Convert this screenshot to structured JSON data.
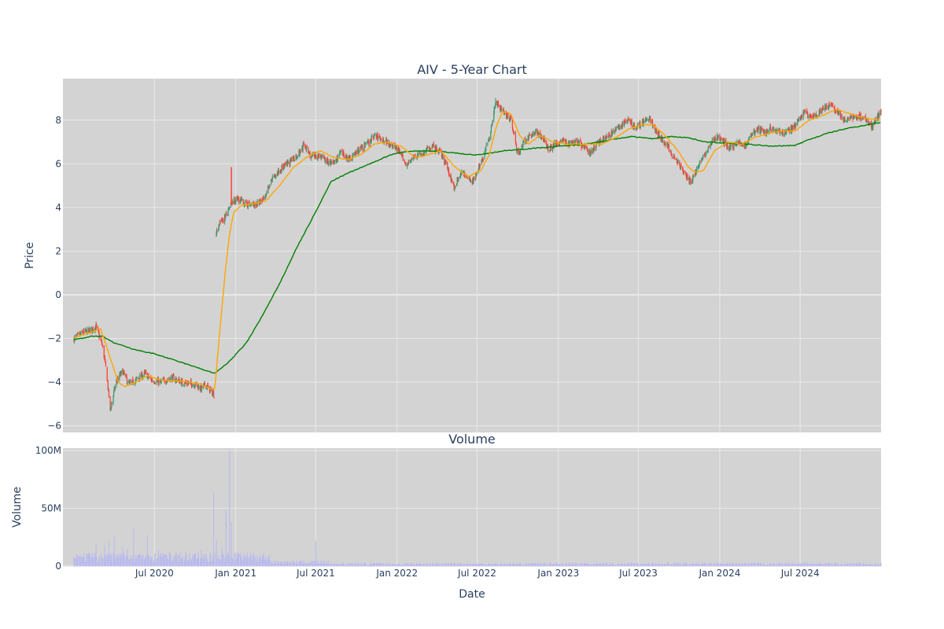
{
  "chart_data": [
    {
      "type": "candlestick",
      "title": "AIV - 5-Year Chart",
      "xlabel": "",
      "ylabel": "Price",
      "ylim": [
        -6.3,
        9.9
      ],
      "xlim": [
        "2020-01-01",
        "2024-12-31"
      ],
      "grid": true,
      "legend": "none",
      "colors": {
        "background": "#d3d3d3",
        "grid": "#e8e8e8",
        "increasing": "#3d9970",
        "decreasing": "#ff4136",
        "ma_short": "#ffa500",
        "ma_long": "#008000"
      },
      "yticks": [
        "−6",
        "−4",
        "−2",
        "0",
        "2",
        "4",
        "6",
        "8"
      ],
      "ytick_values": [
        -6,
        -4,
        -2,
        0,
        2,
        4,
        6,
        8
      ],
      "price_anchors": [
        [
          "2020-01-01",
          -2.0
        ],
        [
          "2020-01-20",
          -1.75
        ],
        [
          "2020-02-10",
          -1.6
        ],
        [
          "2020-02-20",
          -1.45
        ],
        [
          "2020-03-05",
          -2.3
        ],
        [
          "2020-03-15",
          -3.6
        ],
        [
          "2020-03-23",
          -5.3
        ],
        [
          "2020-04-05",
          -4.0
        ],
        [
          "2020-04-20",
          -3.5
        ],
        [
          "2020-05-05",
          -4.1
        ],
        [
          "2020-05-20",
          -3.9
        ],
        [
          "2020-06-10",
          -3.6
        ],
        [
          "2020-06-25",
          -3.9
        ],
        [
          "2020-07-15",
          -4.0
        ],
        [
          "2020-08-10",
          -3.8
        ],
        [
          "2020-09-01",
          -4.0
        ],
        [
          "2020-10-01",
          -4.1
        ],
        [
          "2020-10-15",
          -4.3
        ],
        [
          "2020-10-25",
          -4.1
        ],
        [
          "2020-11-05",
          -4.4
        ],
        [
          "2020-11-15",
          -4.6
        ],
        [
          "2020-11-18",
          2.8
        ],
        [
          "2020-11-25",
          3.3
        ],
        [
          "2020-12-05",
          3.5
        ],
        [
          "2020-12-15",
          3.8
        ],
        [
          "2020-12-22",
          4.2
        ],
        [
          "2021-01-05",
          4.4
        ],
        [
          "2021-01-20",
          4.2
        ],
        [
          "2021-02-05",
          4.1
        ],
        [
          "2021-02-25",
          4.2
        ],
        [
          "2021-03-10",
          4.6
        ],
        [
          "2021-03-25",
          5.3
        ],
        [
          "2021-04-15",
          5.8
        ],
        [
          "2021-05-05",
          6.1
        ],
        [
          "2021-05-25",
          6.5
        ],
        [
          "2021-06-05",
          6.9
        ],
        [
          "2021-06-20",
          6.3
        ],
        [
          "2021-07-10",
          6.4
        ],
        [
          "2021-07-25",
          6.1
        ],
        [
          "2021-08-10",
          6.0
        ],
        [
          "2021-08-25",
          6.5
        ],
        [
          "2021-09-15",
          6.2
        ],
        [
          "2021-10-05",
          6.6
        ],
        [
          "2021-10-25",
          6.9
        ],
        [
          "2021-11-10",
          7.3
        ],
        [
          "2021-12-01",
          7.1
        ],
        [
          "2021-12-20",
          6.9
        ],
        [
          "2022-01-05",
          6.6
        ],
        [
          "2022-01-20",
          6.0
        ],
        [
          "2022-02-10",
          6.3
        ],
        [
          "2022-03-01",
          6.5
        ],
        [
          "2022-03-20",
          6.8
        ],
        [
          "2022-04-10",
          6.5
        ],
        [
          "2022-04-25",
          5.8
        ],
        [
          "2022-05-10",
          4.9
        ],
        [
          "2022-05-25",
          5.6
        ],
        [
          "2022-06-10",
          5.4
        ],
        [
          "2022-06-20",
          5.2
        ],
        [
          "2022-07-01",
          5.6
        ],
        [
          "2022-07-15",
          6.3
        ],
        [
          "2022-07-28",
          7.2
        ],
        [
          "2022-08-05",
          8.0
        ],
        [
          "2022-08-12",
          8.9
        ],
        [
          "2022-08-22",
          8.6
        ],
        [
          "2022-09-01",
          8.3
        ],
        [
          "2022-09-15",
          8.1
        ],
        [
          "2022-09-25",
          7.1
        ],
        [
          "2022-10-01",
          6.4
        ],
        [
          "2022-10-10",
          6.8
        ],
        [
          "2022-10-25",
          7.2
        ],
        [
          "2022-11-10",
          7.5
        ],
        [
          "2022-11-25",
          7.2
        ],
        [
          "2022-12-10",
          6.7
        ],
        [
          "2022-12-25",
          6.9
        ],
        [
          "2023-01-10",
          7.1
        ],
        [
          "2023-01-25",
          6.9
        ],
        [
          "2023-02-10",
          7.1
        ],
        [
          "2023-03-01",
          6.7
        ],
        [
          "2023-03-15",
          6.5
        ],
        [
          "2023-04-01",
          7.0
        ],
        [
          "2023-04-20",
          7.2
        ],
        [
          "2023-05-10",
          7.5
        ],
        [
          "2023-05-25",
          7.8
        ],
        [
          "2023-06-10",
          8.0
        ],
        [
          "2023-06-25",
          7.6
        ],
        [
          "2023-07-10",
          7.9
        ],
        [
          "2023-07-25",
          8.1
        ],
        [
          "2023-08-05",
          7.7
        ],
        [
          "2023-08-20",
          7.2
        ],
        [
          "2023-09-05",
          6.8
        ],
        [
          "2023-09-20",
          6.3
        ],
        [
          "2023-10-05",
          5.8
        ],
        [
          "2023-10-20",
          5.3
        ],
        [
          "2023-10-28",
          5.1
        ],
        [
          "2023-11-10",
          5.8
        ],
        [
          "2023-11-25",
          6.3
        ],
        [
          "2023-12-10",
          6.9
        ],
        [
          "2023-12-25",
          7.2
        ],
        [
          "2024-01-10",
          7.0
        ],
        [
          "2024-01-25",
          6.7
        ],
        [
          "2024-02-10",
          7.0
        ],
        [
          "2024-02-25",
          6.8
        ],
        [
          "2024-03-10",
          7.2
        ],
        [
          "2024-03-25",
          7.6
        ],
        [
          "2024-04-10",
          7.4
        ],
        [
          "2024-04-25",
          7.6
        ],
        [
          "2024-05-10",
          7.5
        ],
        [
          "2024-05-25",
          7.4
        ],
        [
          "2024-06-10",
          7.6
        ],
        [
          "2024-06-25",
          7.9
        ],
        [
          "2024-07-10",
          8.4
        ],
        [
          "2024-07-25",
          8.1
        ],
        [
          "2024-08-10",
          8.3
        ],
        [
          "2024-08-25",
          8.6
        ],
        [
          "2024-09-10",
          8.7
        ],
        [
          "2024-09-25",
          8.3
        ],
        [
          "2024-10-10",
          8.0
        ],
        [
          "2024-10-25",
          8.1
        ],
        [
          "2024-11-10",
          8.2
        ],
        [
          "2024-11-25",
          8.1
        ],
        [
          "2024-12-10",
          7.7
        ],
        [
          "2024-12-31",
          8.4
        ]
      ],
      "ma_short_anchors": [
        [
          "2020-01-01",
          -1.95
        ],
        [
          "2020-02-10",
          -1.7
        ],
        [
          "2020-03-01",
          -1.55
        ],
        [
          "2020-03-20",
          -2.7
        ],
        [
          "2020-04-10",
          -4.0
        ],
        [
          "2020-04-25",
          -4.2
        ],
        [
          "2020-05-20",
          -4.0
        ],
        [
          "2020-06-15",
          -3.7
        ],
        [
          "2020-07-15",
          -3.9
        ],
        [
          "2020-09-01",
          -3.95
        ],
        [
          "2020-10-15",
          -4.1
        ],
        [
          "2020-11-05",
          -4.3
        ],
        [
          "2020-11-15",
          -4.3
        ],
        [
          "2020-11-20",
          -3.0
        ],
        [
          "2020-11-28",
          -1.2
        ],
        [
          "2020-12-08",
          1.0
        ],
        [
          "2020-12-18",
          2.8
        ],
        [
          "2020-12-28",
          3.8
        ],
        [
          "2021-01-15",
          4.1
        ],
        [
          "2021-02-15",
          4.2
        ],
        [
          "2021-03-10",
          4.3
        ],
        [
          "2021-04-10",
          5.0
        ],
        [
          "2021-05-10",
          5.8
        ],
        [
          "2021-06-10",
          6.3
        ],
        [
          "2021-07-10",
          6.6
        ],
        [
          "2021-08-10",
          6.3
        ],
        [
          "2021-09-10",
          6.2
        ],
        [
          "2021-10-10",
          6.4
        ],
        [
          "2021-11-10",
          6.9
        ],
        [
          "2021-12-10",
          7.0
        ],
        [
          "2022-01-10",
          6.8
        ],
        [
          "2022-02-10",
          6.3
        ],
        [
          "2022-03-10",
          6.4
        ],
        [
          "2022-04-10",
          6.6
        ],
        [
          "2022-05-10",
          5.9
        ],
        [
          "2022-06-10",
          5.4
        ],
        [
          "2022-07-10",
          5.7
        ],
        [
          "2022-07-28",
          6.4
        ],
        [
          "2022-08-15",
          7.8
        ],
        [
          "2022-08-28",
          8.4
        ],
        [
          "2022-09-15",
          8.3
        ],
        [
          "2022-10-05",
          7.3
        ],
        [
          "2022-10-25",
          6.9
        ],
        [
          "2022-11-20",
          7.3
        ],
        [
          "2022-12-20",
          7.0
        ],
        [
          "2023-01-20",
          6.9
        ],
        [
          "2023-03-01",
          6.9
        ],
        [
          "2023-04-10",
          6.9
        ],
        [
          "2023-05-10",
          7.2
        ],
        [
          "2023-06-10",
          7.6
        ],
        [
          "2023-07-10",
          7.8
        ],
        [
          "2023-08-01",
          7.8
        ],
        [
          "2023-08-25",
          7.4
        ],
        [
          "2023-09-25",
          6.7
        ],
        [
          "2023-10-20",
          5.9
        ],
        [
          "2023-11-05",
          5.6
        ],
        [
          "2023-11-25",
          5.7
        ],
        [
          "2023-12-20",
          6.6
        ],
        [
          "2024-01-20",
          7.0
        ],
        [
          "2024-02-20",
          6.9
        ],
        [
          "2024-03-20",
          7.2
        ],
        [
          "2024-04-20",
          7.4
        ],
        [
          "2024-05-20",
          7.5
        ],
        [
          "2024-06-20",
          7.5
        ],
        [
          "2024-07-20",
          8.0
        ],
        [
          "2024-08-20",
          8.2
        ],
        [
          "2024-09-20",
          8.5
        ],
        [
          "2024-10-20",
          8.3
        ],
        [
          "2024-11-20",
          8.1
        ],
        [
          "2024-12-31",
          8.0
        ]
      ],
      "ma_long_anchors": [
        [
          "2020-01-01",
          -2.05
        ],
        [
          "2020-02-10",
          -1.9
        ],
        [
          "2020-03-05",
          -1.9
        ],
        [
          "2020-04-01",
          -2.2
        ],
        [
          "2020-05-15",
          -2.5
        ],
        [
          "2020-07-01",
          -2.7
        ],
        [
          "2020-09-01",
          -3.1
        ],
        [
          "2020-11-15",
          -3.6
        ],
        [
          "2020-12-20",
          -3.0
        ],
        [
          "2021-01-25",
          -2.2
        ],
        [
          "2021-03-01",
          -1.0
        ],
        [
          "2021-04-10",
          0.5
        ],
        [
          "2021-05-20",
          2.2
        ],
        [
          "2021-07-01",
          3.8
        ],
        [
          "2021-08-05",
          5.2
        ],
        [
          "2021-09-15",
          5.6
        ],
        [
          "2021-11-01",
          6.0
        ],
        [
          "2021-12-15",
          6.4
        ],
        [
          "2022-01-15",
          6.55
        ],
        [
          "2022-03-01",
          6.6
        ],
        [
          "2022-04-20",
          6.55
        ],
        [
          "2022-06-01",
          6.45
        ],
        [
          "2022-07-01",
          6.4
        ],
        [
          "2022-09-01",
          6.6
        ],
        [
          "2022-11-01",
          6.7
        ],
        [
          "2023-01-01",
          6.8
        ],
        [
          "2023-03-01",
          6.9
        ],
        [
          "2023-05-01",
          7.1
        ],
        [
          "2023-06-15",
          7.25
        ],
        [
          "2023-08-01",
          7.15
        ],
        [
          "2023-09-15",
          7.25
        ],
        [
          "2023-10-20",
          7.2
        ],
        [
          "2023-12-01",
          7.0
        ],
        [
          "2024-01-15",
          6.95
        ],
        [
          "2024-03-01",
          6.9
        ],
        [
          "2024-05-01",
          6.8
        ],
        [
          "2024-06-20",
          6.85
        ],
        [
          "2024-07-20",
          7.1
        ],
        [
          "2024-09-01",
          7.4
        ],
        [
          "2024-10-10",
          7.6
        ],
        [
          "2024-12-31",
          7.9
        ]
      ],
      "gap": [
        "2020-11-15",
        "2020-11-18"
      ]
    },
    {
      "type": "bar",
      "title": "Volume",
      "xlabel": "Date",
      "ylabel": "Volume",
      "ylim": [
        0,
        100000000
      ],
      "xlim": [
        "2020-01-01",
        "2024-12-31"
      ],
      "grid": true,
      "colors": {
        "background": "#d3d3d3",
        "grid": "#e8e8e8",
        "bar": "#b8b8f0"
      },
      "yticks": [
        "0",
        "50M",
        "100M"
      ],
      "ytick_values": [
        0,
        50000000,
        100000000
      ],
      "xticks": [
        "Jul 2020",
        "Jan 2021",
        "Jul 2021",
        "Jan 2022",
        "Jul 2022",
        "Jan 2023",
        "Jul 2023",
        "Jan 2024",
        "Jul 2024"
      ],
      "xtick_dates": [
        "2020-07-01",
        "2021-01-01",
        "2021-07-01",
        "2022-01-01",
        "2022-07-01",
        "2023-01-01",
        "2023-07-01",
        "2024-01-01",
        "2024-07-01"
      ],
      "volume_spikes": [
        [
          "2020-01-15",
          9000000
        ],
        [
          "2020-02-01",
          14000000
        ],
        [
          "2020-02-20",
          20000000
        ],
        [
          "2020-03-01",
          20000000
        ],
        [
          "2020-03-10",
          18000000
        ],
        [
          "2020-03-20",
          21000000
        ],
        [
          "2020-04-01",
          26000000
        ],
        [
          "2020-04-20",
          17000000
        ],
        [
          "2020-05-01",
          15000000
        ],
        [
          "2020-05-15",
          33000000
        ],
        [
          "2020-06-15",
          27000000
        ],
        [
          "2020-07-10",
          14000000
        ],
        [
          "2020-08-01",
          22000000
        ],
        [
          "2020-09-10",
          12000000
        ],
        [
          "2020-09-20",
          28000000
        ],
        [
          "2020-10-15",
          14000000
        ],
        [
          "2020-11-01",
          23000000
        ],
        [
          "2020-11-12",
          64000000
        ],
        [
          "2020-11-18",
          22000000
        ],
        [
          "2020-12-01",
          16000000
        ],
        [
          "2020-12-10",
          48000000
        ],
        [
          "2020-12-18",
          100000000
        ],
        [
          "2020-12-22",
          38000000
        ],
        [
          "2021-01-05",
          12000000
        ],
        [
          "2021-02-15",
          8000000
        ],
        [
          "2021-03-01",
          6000000
        ],
        [
          "2021-03-15",
          8000000
        ],
        [
          "2021-07-01",
          22000000
        ]
      ]
    }
  ]
}
